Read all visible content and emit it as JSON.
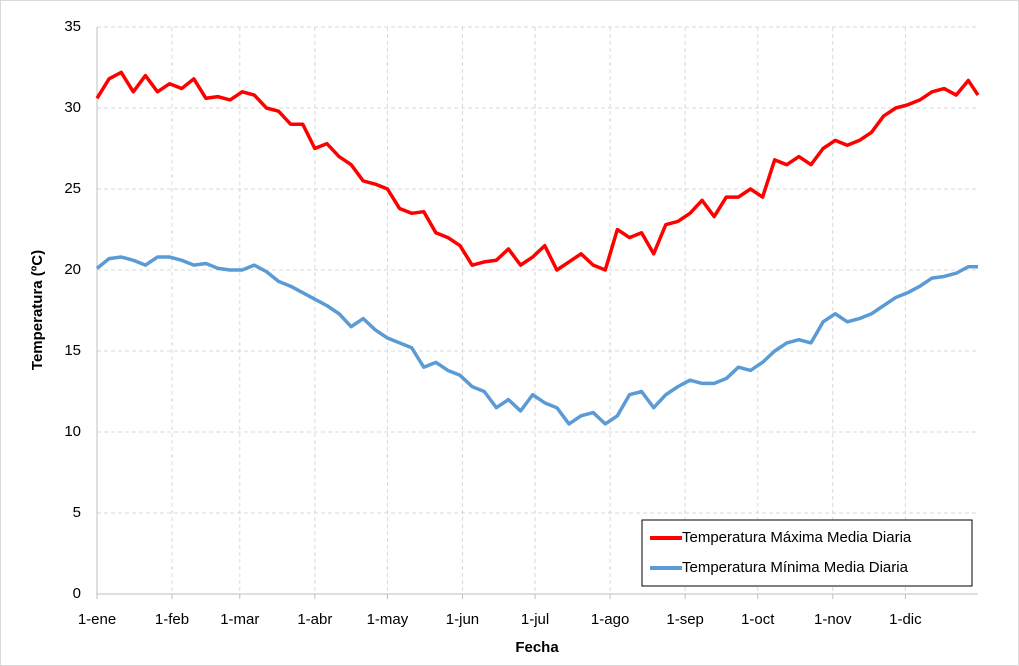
{
  "chart_data": {
    "type": "line",
    "x_label": "Fecha",
    "y_label": "Temperatura (ºC)",
    "x": [
      1,
      6,
      11,
      16,
      21,
      26,
      31,
      36,
      41,
      46,
      51,
      56,
      61,
      66,
      71,
      76,
      81,
      86,
      91,
      96,
      101,
      106,
      111,
      116,
      121,
      126,
      131,
      136,
      141,
      146,
      151,
      156,
      161,
      166,
      171,
      176,
      181,
      186,
      191,
      196,
      201,
      206,
      211,
      216,
      221,
      226,
      231,
      236,
      241,
      246,
      251,
      256,
      261,
      266,
      271,
      276,
      281,
      286,
      291,
      296,
      301,
      306,
      311,
      316,
      321,
      326,
      331,
      336,
      341,
      346,
      351,
      356,
      361,
      365
    ],
    "series": [
      {
        "name": "Temperatura Máxima Media Diaria",
        "color": "#ff0000",
        "values": [
          30.6,
          31.8,
          32.2,
          31.0,
          32.0,
          31.0,
          31.5,
          31.2,
          31.8,
          30.6,
          30.7,
          30.5,
          31.0,
          30.8,
          30.0,
          29.8,
          29.0,
          29.0,
          27.5,
          27.8,
          27.0,
          26.5,
          25.5,
          25.3,
          25.0,
          23.8,
          23.5,
          23.6,
          22.3,
          22.0,
          21.5,
          20.3,
          20.5,
          20.6,
          21.3,
          20.3,
          20.8,
          21.5,
          20.0,
          20.5,
          21.0,
          20.3,
          20.0,
          22.5,
          22.0,
          22.3,
          21.0,
          22.8,
          23.0,
          23.5,
          24.3,
          23.3,
          24.5,
          24.5,
          25.0,
          24.5,
          26.8,
          26.5,
          27.0,
          26.5,
          27.5,
          28.0,
          27.7,
          28.0,
          28.5,
          29.5,
          30.0,
          30.2,
          30.5,
          31.0,
          31.2,
          30.8,
          31.7,
          30.8
        ]
      },
      {
        "name": "Temperatura Mínima Media Diaria",
        "color": "#5b9bd5",
        "values": [
          20.1,
          20.7,
          20.8,
          20.6,
          20.3,
          20.8,
          20.8,
          20.6,
          20.3,
          20.4,
          20.1,
          20.0,
          20.0,
          20.3,
          19.9,
          19.3,
          19.0,
          18.6,
          18.2,
          17.8,
          17.3,
          16.5,
          17.0,
          16.3,
          15.8,
          15.5,
          15.2,
          14.0,
          14.3,
          13.8,
          13.5,
          12.8,
          12.5,
          11.5,
          12.0,
          11.3,
          12.3,
          11.8,
          11.5,
          10.5,
          11.0,
          11.2,
          10.5,
          11.0,
          12.3,
          12.5,
          11.5,
          12.3,
          12.8,
          13.2,
          13.0,
          13.0,
          13.3,
          14.0,
          13.8,
          14.3,
          15.0,
          15.5,
          15.7,
          15.5,
          16.8,
          17.3,
          16.8,
          17.0,
          17.3,
          17.8,
          18.3,
          18.6,
          19.0,
          19.5,
          19.6,
          19.8,
          20.2,
          20.2
        ]
      }
    ],
    "xlim": [
      1,
      365
    ],
    "xticks": [
      {
        "value": 1,
        "label": "1-ene"
      },
      {
        "value": 32,
        "label": "1-feb"
      },
      {
        "value": 60,
        "label": "1-mar"
      },
      {
        "value": 91,
        "label": "1-abr"
      },
      {
        "value": 121,
        "label": "1-may"
      },
      {
        "value": 152,
        "label": "1-jun"
      },
      {
        "value": 182,
        "label": "1-jul"
      },
      {
        "value": 213,
        "label": "1-ago"
      },
      {
        "value": 244,
        "label": "1-sep"
      },
      {
        "value": 274,
        "label": "1-oct"
      },
      {
        "value": 305,
        "label": "1-nov"
      },
      {
        "value": 335,
        "label": "1-dic"
      }
    ],
    "ylim": [
      0,
      35
    ],
    "yticks": [
      0,
      5,
      10,
      15,
      20,
      25,
      30,
      35
    ],
    "grid": true,
    "legend": "lower right"
  }
}
